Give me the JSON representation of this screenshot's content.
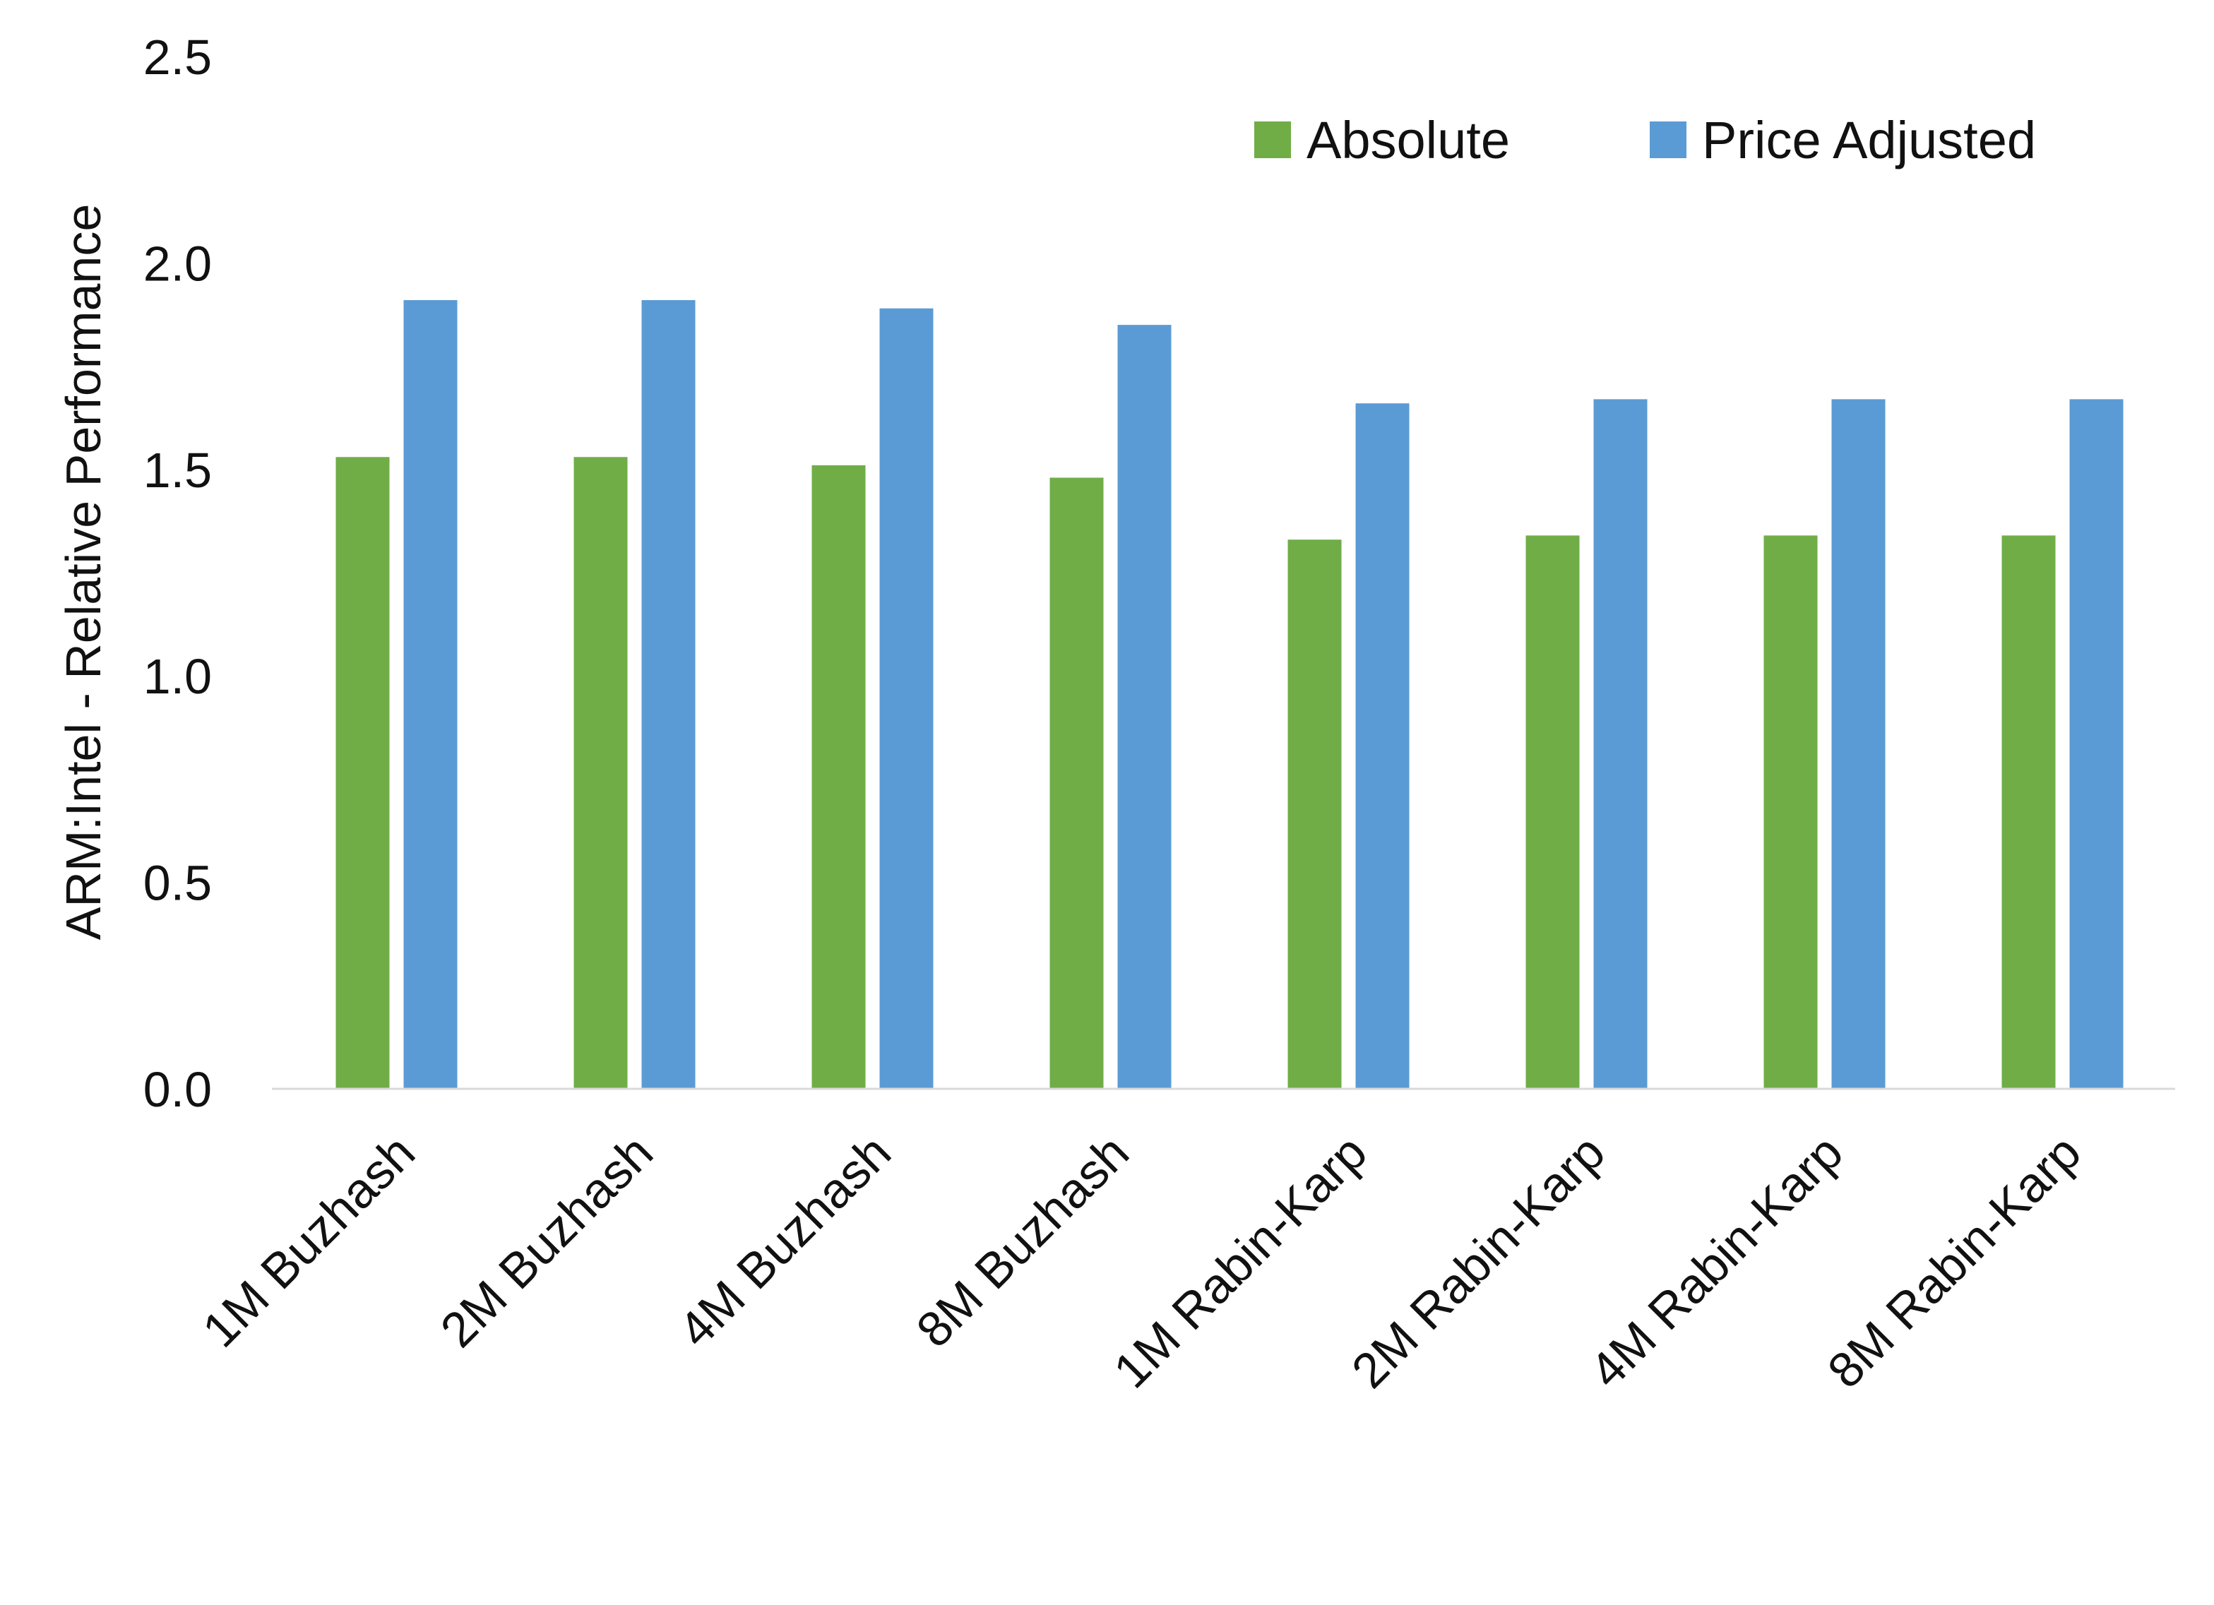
{
  "chart_data": {
    "type": "bar",
    "title": "",
    "xlabel": "",
    "ylabel": "ARM:Intel - Relative Performance",
    "ylim": [
      0,
      2.5
    ],
    "yticks": [
      "0.0",
      "0.5",
      "1.0",
      "1.5",
      "2.0",
      "2.5"
    ],
    "grid": false,
    "legend_position": "top-right",
    "categories": [
      "1M Buzhash",
      "2M Buzhash",
      "4M Buzhash",
      "8M Buzhash",
      "1M Rabin-Karp",
      "2M Rabin-Karp",
      "4M Rabin-Karp",
      "8M Rabin-Karp"
    ],
    "series": [
      {
        "name": "Absolute",
        "color": "#70ad47",
        "values": [
          1.53,
          1.53,
          1.51,
          1.48,
          1.33,
          1.34,
          1.34,
          1.34
        ]
      },
      {
        "name": "Price Adjusted",
        "color": "#5b9bd5",
        "values": [
          1.91,
          1.91,
          1.89,
          1.85,
          1.66,
          1.67,
          1.67,
          1.67
        ]
      }
    ]
  }
}
